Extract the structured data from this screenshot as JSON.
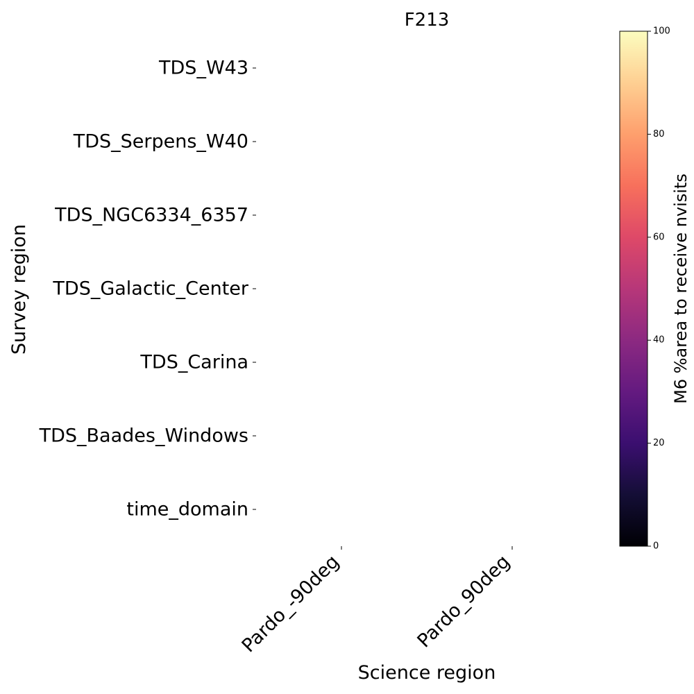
{
  "chart_data": {
    "type": "heatmap",
    "title": "F213",
    "xlabel": "Science region",
    "ylabel": "Survey region",
    "x_categories": [
      "Pardo_-90deg",
      "Pardo_90deg"
    ],
    "y_categories": [
      "TDS_W43",
      "TDS_Serpens_W40",
      "TDS_NGC6334_6357",
      "TDS_Galactic_Center",
      "TDS_Carina",
      "TDS_Baades_Windows",
      "time_domain"
    ],
    "values": [
      [
        null,
        null
      ],
      [
        null,
        null
      ],
      [
        null,
        null
      ],
      [
        null,
        null
      ],
      [
        null,
        null
      ],
      [
        null,
        null
      ],
      [
        null,
        null
      ]
    ],
    "colorbar": {
      "label": "M6 %area to receive nvisits",
      "range": [
        0,
        100
      ],
      "ticks": [
        "0",
        "20",
        "40",
        "60",
        "80",
        "100"
      ],
      "colormap": "magma"
    },
    "grid": false
  }
}
